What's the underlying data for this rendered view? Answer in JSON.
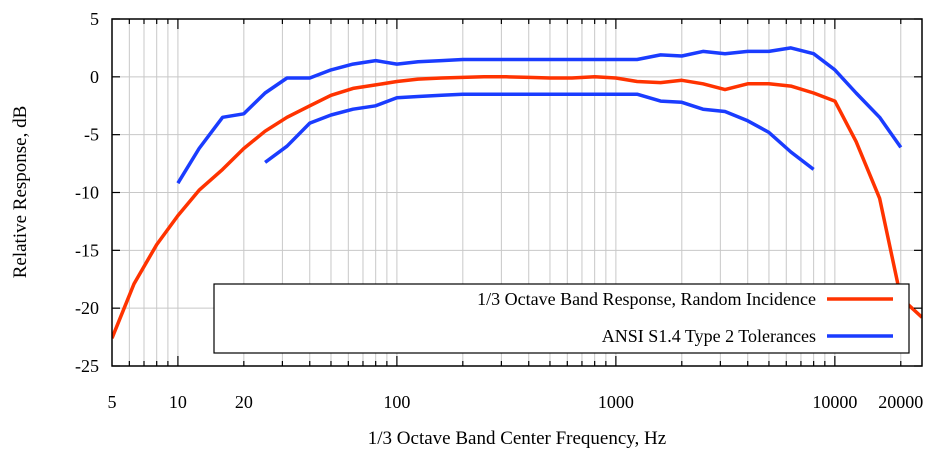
{
  "chart_data": {
    "type": "line",
    "xscale": "log",
    "xlim": [
      5,
      25000
    ],
    "ylim": [
      -25,
      5
    ],
    "xticks": [
      5,
      10,
      20,
      100,
      1000,
      10000,
      20000
    ],
    "xtick_labels": [
      "5",
      "10",
      "20",
      "100",
      "1000",
      "10000",
      "20000"
    ],
    "yticks": [
      5,
      0,
      -5,
      -10,
      -15,
      -20,
      -25
    ],
    "ytick_labels": [
      "5",
      "0",
      "-5",
      "-10",
      "-15",
      "-20",
      "-25"
    ],
    "xlabel": "1/3 Octave Band Center Frequency, Hz",
    "ylabel": "Relative Response, dB",
    "grid": true,
    "legend_position": "bottom-right",
    "series": [
      {
        "name": "1/3 Octave Band Response, Random Incidence",
        "color": "#ff3300",
        "x": [
          5,
          6.3,
          8,
          10,
          12.5,
          16,
          20,
          25,
          31.5,
          40,
          50,
          63,
          80,
          100,
          125,
          160,
          200,
          250,
          315,
          400,
          500,
          630,
          800,
          1000,
          1250,
          1600,
          2000,
          2500,
          3150,
          4000,
          5000,
          6300,
          8000,
          10000,
          12500,
          16000,
          20000,
          25000
        ],
        "y": [
          -22.6,
          -17.9,
          -14.5,
          -12.0,
          -9.8,
          -8.0,
          -6.2,
          -4.7,
          -3.5,
          -2.5,
          -1.6,
          -1.0,
          -0.7,
          -0.4,
          -0.2,
          -0.1,
          -0.05,
          0,
          0,
          -0.05,
          -0.1,
          -0.1,
          0,
          -0.1,
          -0.4,
          -0.5,
          -0.3,
          -0.6,
          -1.1,
          -0.6,
          -0.6,
          -0.8,
          -1.4,
          -2.1,
          -5.6,
          -10.5,
          -19.1,
          -20.8
        ]
      },
      {
        "name": "ANSI S1.4 Type 2 Tolerances",
        "color": "#1a3cff",
        "x": [
          10,
          12.5,
          16,
          20,
          25,
          31.5,
          40,
          50,
          63,
          80,
          100,
          125,
          160,
          200,
          250,
          315,
          400,
          500,
          630,
          800,
          1000,
          1250,
          1600,
          2000,
          2500,
          3150,
          4000,
          5000,
          6300,
          8000,
          10000,
          12500,
          16000,
          20000
        ],
        "y": [
          -9.2,
          -6.2,
          -3.5,
          -3.2,
          -1.4,
          -0.1,
          -0.1,
          0.6,
          1.1,
          1.4,
          1.1,
          1.3,
          1.4,
          1.5,
          1.5,
          1.5,
          1.5,
          1.5,
          1.5,
          1.5,
          1.5,
          1.5,
          1.9,
          1.8,
          2.2,
          2.0,
          2.2,
          2.2,
          2.5,
          2.0,
          0.6,
          -1.4,
          -3.5,
          -6.1
        ]
      },
      {
        "name": "",
        "color": "#1a3cff",
        "x": [
          25,
          31.5,
          40,
          50,
          63,
          80,
          100,
          125,
          160,
          200,
          250,
          315,
          400,
          500,
          630,
          800,
          1000,
          1250,
          1600,
          2000,
          2500,
          3150,
          4000,
          5000,
          6300,
          8000
        ],
        "y": [
          -7.4,
          -6.0,
          -4.0,
          -3.3,
          -2.8,
          -2.5,
          -1.8,
          -1.7,
          -1.6,
          -1.5,
          -1.5,
          -1.5,
          -1.5,
          -1.5,
          -1.5,
          -1.5,
          -1.5,
          -1.5,
          -2.1,
          -2.2,
          -2.8,
          -3.0,
          -3.8,
          -4.8,
          -6.5,
          -8.0
        ]
      }
    ]
  }
}
